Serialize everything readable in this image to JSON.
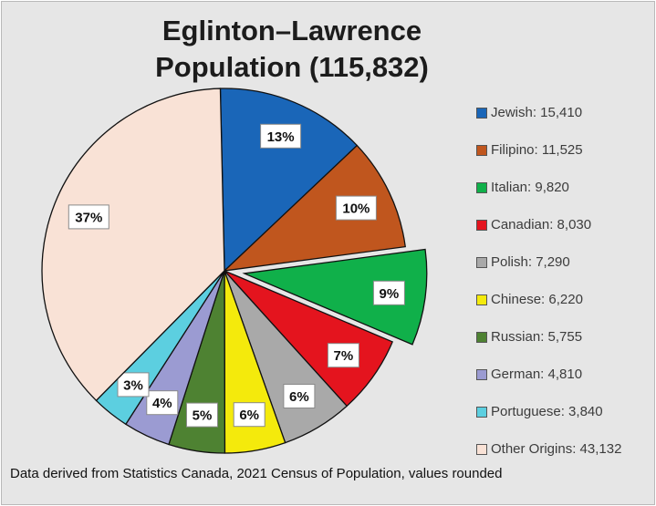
{
  "chart_data": {
    "type": "pie",
    "title": "Eglinton–Lawrence Population (115,832)",
    "title_lines": [
      "Eglinton–Lawrence",
      "Population (115,832)"
    ],
    "slices": [
      {
        "name": "Jewish",
        "value": 15410,
        "percent_label": "13%",
        "legend_label": "Jewish: 15,410",
        "color": "#1a66b8",
        "exploded": false
      },
      {
        "name": "Filipino",
        "value": 11525,
        "percent_label": "10%",
        "legend_label": "Filipino: 11,525",
        "color": "#c0561e",
        "exploded": false
      },
      {
        "name": "Italian",
        "value": 9820,
        "percent_label": "9%",
        "legend_label": "Italian: 9,820",
        "color": "#10b04a",
        "exploded": true
      },
      {
        "name": "Canadian",
        "value": 8030,
        "percent_label": "7%",
        "legend_label": "Canadian: 8,030",
        "color": "#e4141e",
        "exploded": false
      },
      {
        "name": "Polish",
        "value": 7290,
        "percent_label": "6%",
        "legend_label": "Polish: 7,290",
        "color": "#a9a9a9",
        "exploded": false
      },
      {
        "name": "Chinese",
        "value": 6220,
        "percent_label": "6%",
        "legend_label": "Chinese: 6,220",
        "color": "#f4ea0c",
        "exploded": false
      },
      {
        "name": "Russian",
        "value": 5755,
        "percent_label": "5%",
        "legend_label": "Russian: 5,755",
        "color": "#4e8232",
        "exploded": false
      },
      {
        "name": "German",
        "value": 4810,
        "percent_label": "4%",
        "legend_label": "German: 4,810",
        "color": "#9b9bd2",
        "exploded": false
      },
      {
        "name": "Portuguese",
        "value": 3840,
        "percent_label": "3%",
        "legend_label": "Portuguese: 3,840",
        "color": "#5ccfe0",
        "exploded": false
      },
      {
        "name": "Other Origins",
        "value": 43132,
        "percent_label": "37%",
        "legend_label": "Other Origins: 43,132",
        "color": "#f9e2d6",
        "exploded": false
      }
    ],
    "legend_position": "right",
    "footnote": "Data derived from Statistics Canada, 2021 Census of Population, values rounded"
  }
}
